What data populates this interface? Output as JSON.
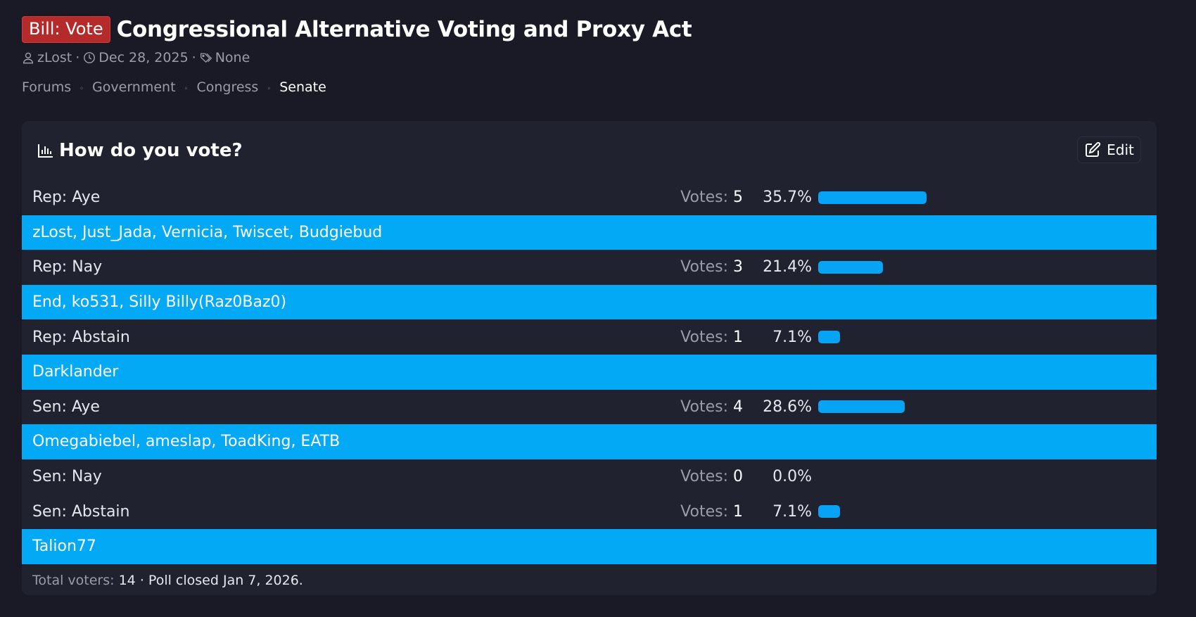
{
  "thread": {
    "prefix": "Bill: Vote",
    "title": "Congressional Alternative Voting and Proxy Act",
    "author": "zLost",
    "date": "Dec 28, 2025",
    "tags": "None",
    "meta_sep": "·"
  },
  "breadcrumb": {
    "items": [
      "Forums",
      "Government",
      "Congress",
      "Senate"
    ],
    "separator": "◦"
  },
  "poll": {
    "title": "How do you vote?",
    "edit_label": "Edit",
    "votes_label": "Votes:",
    "accent_color": "#03a9f4",
    "options": [
      {
        "label": "Rep: Aye",
        "votes": "5",
        "percent": "35.7%",
        "fraction": 0.357,
        "voters": "zLost, Just_Jada, Vernicia, Twiscet, Budgiebud"
      },
      {
        "label": "Rep: Nay",
        "votes": "3",
        "percent": "21.4%",
        "fraction": 0.214,
        "voters": "End, ko531, Silly Billy(Raz0Baz0)"
      },
      {
        "label": "Rep: Abstain",
        "votes": "1",
        "percent": "7.1%",
        "fraction": 0.071,
        "voters": "Darklander"
      },
      {
        "label": "Sen: Aye",
        "votes": "4",
        "percent": "28.6%",
        "fraction": 0.286,
        "voters": "Omegabiebel, ameslap, ToadKing, EATB"
      },
      {
        "label": "Sen: Nay",
        "votes": "0",
        "percent": "0.0%",
        "fraction": 0.0,
        "voters": null
      },
      {
        "label": "Sen: Abstain",
        "votes": "1",
        "percent": "7.1%",
        "fraction": 0.071,
        "voters": "Talion77"
      }
    ],
    "footer": {
      "total_label": "Total voters:",
      "total": "14",
      "sep": "·",
      "closed_text": "Poll closed Jan 7, 2026."
    }
  }
}
